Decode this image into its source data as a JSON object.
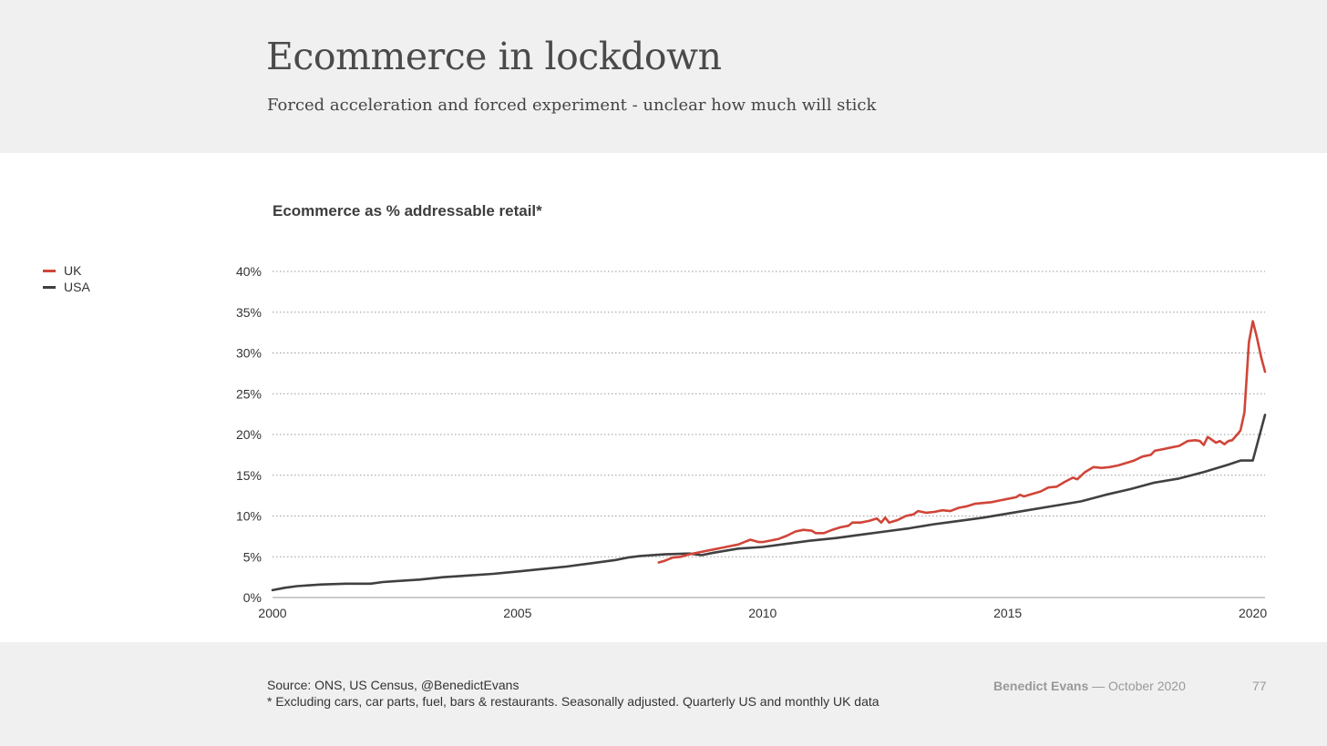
{
  "header": {
    "title": "Ecommerce in lockdown",
    "subtitle": "Forced acceleration and forced experiment - unclear how much will stick"
  },
  "footer": {
    "source": "Source: ONS, US Census, @BenedictEvans",
    "note": "* Excluding cars, car parts, fuel, bars & restaurants. Seasonally adjusted. Quarterly US and monthly UK data",
    "author": "Benedict Evans",
    "date": "— October 2020",
    "page": "77"
  },
  "colors": {
    "uk": "#d04538",
    "usa": "#404040",
    "grid": "#9a9a9a",
    "header_bg": "#f0f0f0"
  },
  "chart_data": {
    "type": "line",
    "title": "Ecommerce as % addressable retail*",
    "xlabel": "",
    "ylabel": "",
    "xlim": [
      2000,
      2020.25
    ],
    "ylim": [
      0,
      40
    ],
    "xticks": [
      2000,
      2005,
      2010,
      2015,
      2020
    ],
    "yticks": [
      0,
      5,
      10,
      15,
      20,
      25,
      30,
      35,
      40
    ],
    "ytick_labels": [
      "0%",
      "5%",
      "10%",
      "15%",
      "20%",
      "25%",
      "30%",
      "35%",
      "40%"
    ],
    "grid": "horizontal dotted",
    "legend_position": "top-left",
    "series": [
      {
        "name": "UK",
        "color": "#d04538",
        "points": [
          [
            2007.88,
            4.3
          ],
          [
            2008.0,
            4.5
          ],
          [
            2008.17,
            4.9
          ],
          [
            2008.33,
            5.0
          ],
          [
            2008.5,
            5.3
          ],
          [
            2008.67,
            5.5
          ],
          [
            2008.83,
            5.7
          ],
          [
            2009.0,
            5.9
          ],
          [
            2009.17,
            6.1
          ],
          [
            2009.33,
            6.3
          ],
          [
            2009.5,
            6.5
          ],
          [
            2009.67,
            6.9
          ],
          [
            2009.75,
            7.1
          ],
          [
            2009.92,
            6.8
          ],
          [
            2010.0,
            6.8
          ],
          [
            2010.17,
            7.0
          ],
          [
            2010.33,
            7.2
          ],
          [
            2010.5,
            7.6
          ],
          [
            2010.67,
            8.1
          ],
          [
            2010.83,
            8.3
          ],
          [
            2011.0,
            8.2
          ],
          [
            2011.08,
            7.9
          ],
          [
            2011.25,
            7.9
          ],
          [
            2011.42,
            8.3
          ],
          [
            2011.58,
            8.6
          ],
          [
            2011.75,
            8.8
          ],
          [
            2011.83,
            9.2
          ],
          [
            2012.0,
            9.2
          ],
          [
            2012.17,
            9.4
          ],
          [
            2012.33,
            9.7
          ],
          [
            2012.42,
            9.2
          ],
          [
            2012.5,
            9.8
          ],
          [
            2012.58,
            9.2
          ],
          [
            2012.75,
            9.5
          ],
          [
            2012.92,
            10.0
          ],
          [
            2013.08,
            10.2
          ],
          [
            2013.17,
            10.6
          ],
          [
            2013.33,
            10.4
          ],
          [
            2013.5,
            10.5
          ],
          [
            2013.67,
            10.7
          ],
          [
            2013.83,
            10.6
          ],
          [
            2014.0,
            11.0
          ],
          [
            2014.17,
            11.2
          ],
          [
            2014.33,
            11.5
          ],
          [
            2014.5,
            11.6
          ],
          [
            2014.67,
            11.7
          ],
          [
            2014.83,
            11.9
          ],
          [
            2015.0,
            12.1
          ],
          [
            2015.17,
            12.3
          ],
          [
            2015.25,
            12.6
          ],
          [
            2015.33,
            12.4
          ],
          [
            2015.5,
            12.7
          ],
          [
            2015.67,
            13.0
          ],
          [
            2015.83,
            13.5
          ],
          [
            2016.0,
            13.6
          ],
          [
            2016.17,
            14.2
          ],
          [
            2016.33,
            14.7
          ],
          [
            2016.42,
            14.5
          ],
          [
            2016.58,
            15.4
          ],
          [
            2016.75,
            16.0
          ],
          [
            2016.92,
            15.9
          ],
          [
            2017.08,
            16.0
          ],
          [
            2017.25,
            16.2
          ],
          [
            2017.42,
            16.5
          ],
          [
            2017.58,
            16.8
          ],
          [
            2017.75,
            17.3
          ],
          [
            2017.92,
            17.5
          ],
          [
            2018.0,
            18.0
          ],
          [
            2018.17,
            18.2
          ],
          [
            2018.33,
            18.4
          ],
          [
            2018.5,
            18.6
          ],
          [
            2018.67,
            19.2
          ],
          [
            2018.83,
            19.3
          ],
          [
            2018.92,
            19.2
          ],
          [
            2019.0,
            18.7
          ],
          [
            2019.08,
            19.7
          ],
          [
            2019.25,
            19.0
          ],
          [
            2019.33,
            19.2
          ],
          [
            2019.42,
            18.8
          ],
          [
            2019.5,
            19.2
          ],
          [
            2019.58,
            19.3
          ],
          [
            2019.67,
            19.9
          ],
          [
            2019.75,
            20.5
          ],
          [
            2019.83,
            22.7
          ],
          [
            2019.92,
            31.3
          ],
          [
            2020.0,
            33.9
          ],
          [
            2020.08,
            32.0
          ],
          [
            2020.17,
            29.5
          ],
          [
            2020.25,
            27.7
          ]
        ]
      },
      {
        "name": "USA",
        "color": "#404040",
        "points": [
          [
            2000.0,
            0.9
          ],
          [
            2000.25,
            1.2
          ],
          [
            2000.5,
            1.4
          ],
          [
            2000.75,
            1.5
          ],
          [
            2001.0,
            1.6
          ],
          [
            2001.5,
            1.7
          ],
          [
            2002.0,
            1.7
          ],
          [
            2002.25,
            1.9
          ],
          [
            2002.5,
            2.0
          ],
          [
            2003.0,
            2.2
          ],
          [
            2003.5,
            2.5
          ],
          [
            2004.0,
            2.7
          ],
          [
            2004.5,
            2.9
          ],
          [
            2005.0,
            3.2
          ],
          [
            2005.5,
            3.5
          ],
          [
            2006.0,
            3.8
          ],
          [
            2006.5,
            4.2
          ],
          [
            2007.0,
            4.6
          ],
          [
            2007.25,
            4.9
          ],
          [
            2007.5,
            5.1
          ],
          [
            2008.0,
            5.3
          ],
          [
            2008.5,
            5.4
          ],
          [
            2008.75,
            5.2
          ],
          [
            2009.0,
            5.5
          ],
          [
            2009.5,
            6.0
          ],
          [
            2010.0,
            6.2
          ],
          [
            2010.5,
            6.6
          ],
          [
            2011.0,
            7.0
          ],
          [
            2011.5,
            7.3
          ],
          [
            2012.0,
            7.7
          ],
          [
            2012.5,
            8.1
          ],
          [
            2013.0,
            8.5
          ],
          [
            2013.5,
            9.0
          ],
          [
            2014.0,
            9.4
          ],
          [
            2014.5,
            9.8
          ],
          [
            2015.0,
            10.3
          ],
          [
            2015.5,
            10.8
          ],
          [
            2016.0,
            11.3
          ],
          [
            2016.5,
            11.8
          ],
          [
            2017.0,
            12.6
          ],
          [
            2017.5,
            13.3
          ],
          [
            2018.0,
            14.1
          ],
          [
            2018.5,
            14.6
          ],
          [
            2019.0,
            15.4
          ],
          [
            2019.5,
            16.3
          ],
          [
            2019.75,
            16.8
          ],
          [
            2020.0,
            16.8
          ],
          [
            2020.25,
            22.4
          ]
        ]
      }
    ]
  }
}
